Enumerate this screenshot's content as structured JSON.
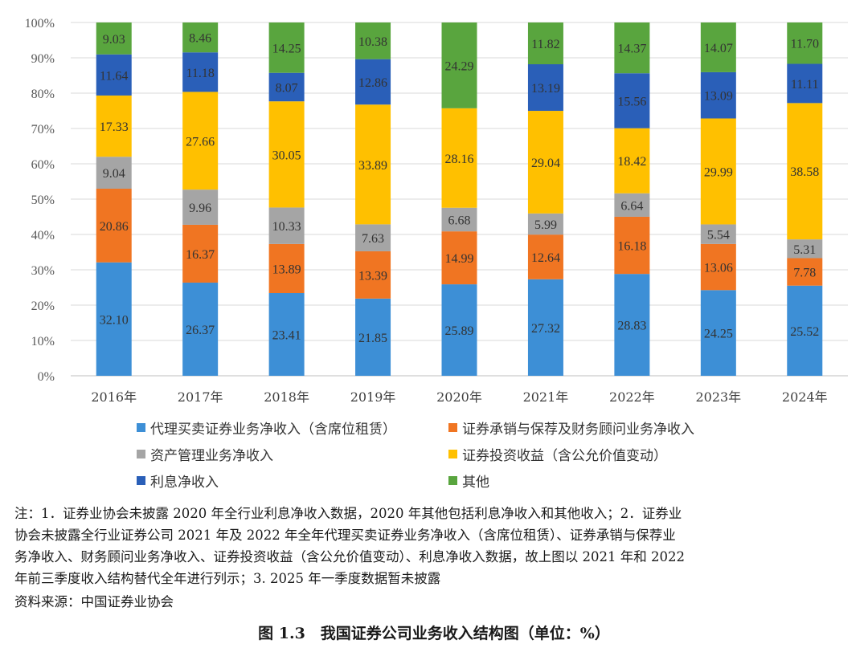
{
  "chart_data": {
    "type": "bar",
    "stacked": true,
    "categories": [
      "2016年",
      "2017年",
      "2018年",
      "2019年",
      "2020年",
      "2021年",
      "2022年",
      "2023年",
      "2024年"
    ],
    "series": [
      {
        "name": "代理买卖证券业务净收入（含席位租赁）",
        "color": "#3d8fd6",
        "values": [
          32.1,
          26.37,
          23.41,
          21.85,
          25.89,
          27.32,
          28.83,
          24.25,
          25.52
        ]
      },
      {
        "name": "证券承销与保荐及财务顾问业务净收入",
        "color": "#f07522",
        "values": [
          20.86,
          16.37,
          13.89,
          13.39,
          14.99,
          12.64,
          16.18,
          13.06,
          7.78
        ]
      },
      {
        "name": "资产管理业务净收入",
        "color": "#a5a5a5",
        "values": [
          9.04,
          9.96,
          10.33,
          7.63,
          6.68,
          5.99,
          6.64,
          5.54,
          5.31
        ]
      },
      {
        "name": "证券投资收益（含公允价值变动）",
        "color": "#ffc000",
        "values": [
          17.33,
          27.66,
          30.05,
          33.89,
          28.16,
          29.04,
          18.42,
          29.99,
          38.58
        ]
      },
      {
        "name": "利息净收入",
        "color": "#2a5fb8",
        "values": [
          11.64,
          11.18,
          8.07,
          12.86,
          null,
          13.19,
          15.56,
          13.09,
          11.11
        ]
      },
      {
        "name": "其他",
        "color": "#59a53e",
        "values": [
          9.03,
          8.46,
          14.25,
          10.38,
          24.29,
          11.82,
          14.37,
          14.07,
          11.7
        ]
      }
    ],
    "ylim": [
      0,
      100
    ],
    "yticks": [
      "0%",
      "10%",
      "20%",
      "30%",
      "40%",
      "50%",
      "60%",
      "70%",
      "80%",
      "90%",
      "100%"
    ],
    "legend_position": "bottom"
  },
  "note": {
    "lines": [
      "注：1．证券业协会未披露 2020 年全行业利息净收入数据，2020 年其他包括利息净收入和其他收入；2．证券业",
      "协会未披露全行业证券公司 2021 年及 2022 年全年代理买卖证券业务净收入（含席位租赁）、证券承销与保荐业",
      "务净收入、财务顾问业务净收入、证券投资收益（含公允价值变动）、利息净收入数据，故上图以 2021 年和 2022",
      "年前三季度收入结构替代全年进行列示；3. 2025 年一季度数据暂未披露"
    ]
  },
  "source": "资料来源：中国证券业协会",
  "caption": "图 1.3　我国证券公司业务收入结构图（单位：%）"
}
